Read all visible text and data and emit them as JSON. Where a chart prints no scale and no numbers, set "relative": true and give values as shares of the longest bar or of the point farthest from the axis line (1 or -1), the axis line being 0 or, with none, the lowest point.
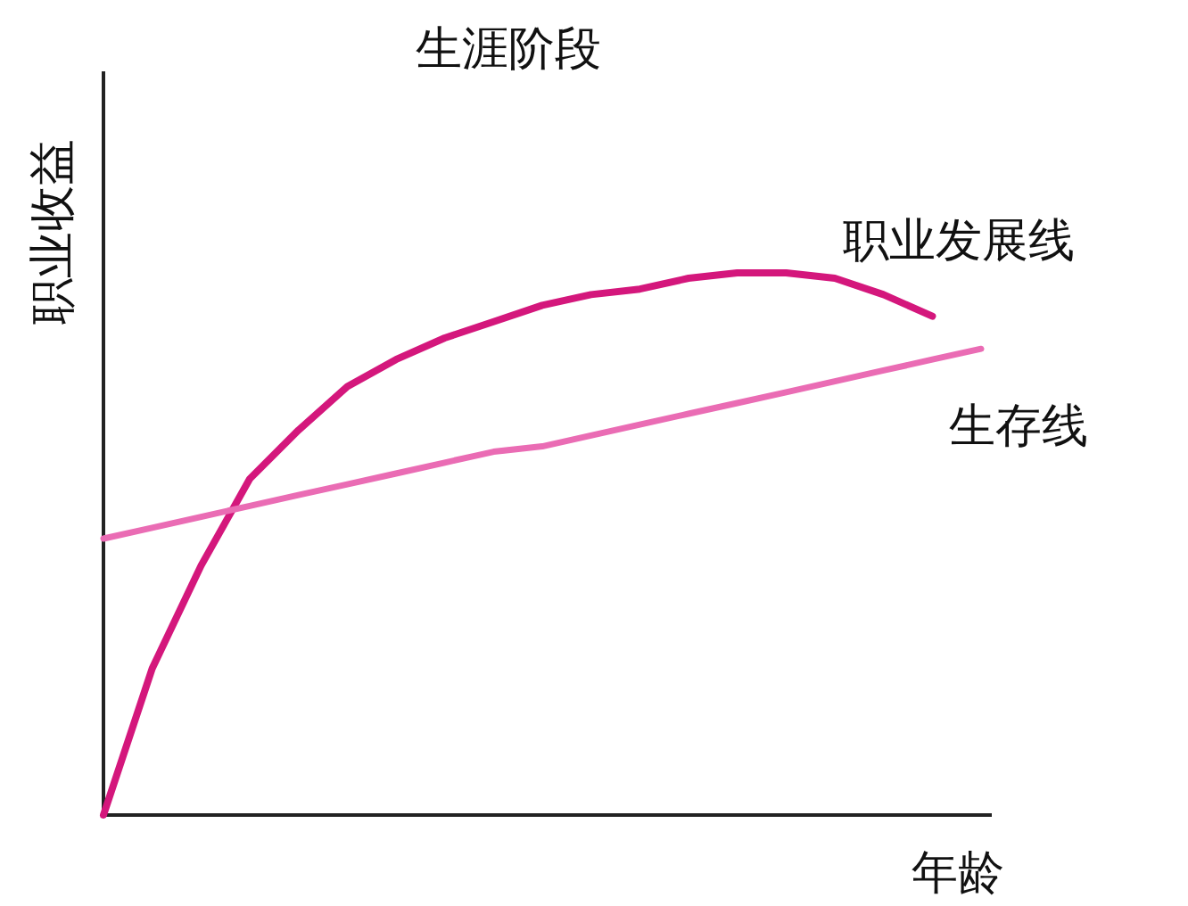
{
  "chart_data": {
    "type": "line",
    "title": "生涯阶段",
    "xlabel": "年龄",
    "ylabel": "职业收益",
    "relative": true,
    "categories": [
      null,
      null,
      null,
      null,
      null,
      null,
      null,
      null,
      null,
      null,
      null,
      null,
      null,
      null,
      null,
      null,
      null,
      null,
      null
    ],
    "series": [
      {
        "name": "职业发展线",
        "color": "#d4177c",
        "values": [
          0,
          0.27,
          0.46,
          0.62,
          0.71,
          0.79,
          0.84,
          0.88,
          0.91,
          0.94,
          0.96,
          0.97,
          0.99,
          1.0,
          1.0,
          0.99,
          0.96,
          0.92,
          null
        ]
      },
      {
        "name": "生存线",
        "color": "#ea6cb4",
        "values": [
          0.51,
          0.53,
          0.55,
          0.57,
          0.59,
          0.61,
          0.63,
          0.65,
          0.67,
          0.68,
          0.7,
          0.72,
          0.74,
          0.76,
          0.78,
          0.8,
          0.82,
          0.84,
          0.86
        ]
      }
    ]
  }
}
